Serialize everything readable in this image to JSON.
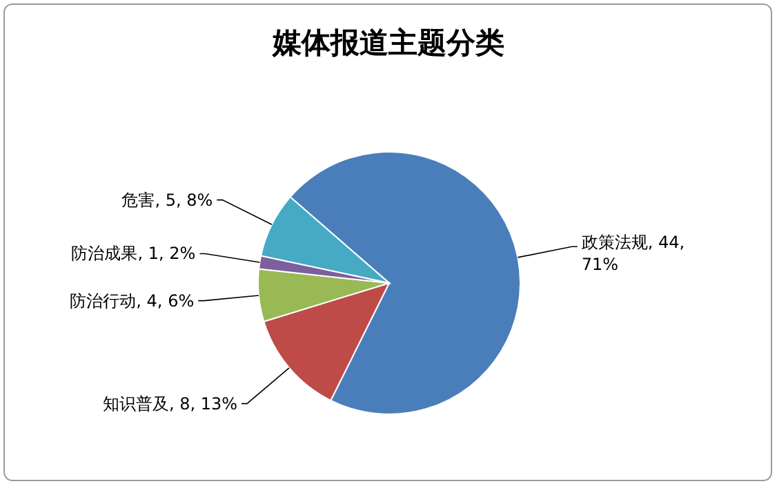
{
  "chart_data": {
    "type": "pie",
    "title": "媒体报道主题分类",
    "categories": [
      "政策法规",
      "知识普及",
      "防治行动",
      "防治成果",
      "危害"
    ],
    "values": [
      44,
      8,
      4,
      1,
      5
    ],
    "value_labels": [
      ", 44, 71%",
      ", 8, 13%",
      ", 4, 6%",
      ", 1, 2%",
      ", 5, 8%"
    ],
    "colors": [
      "#4a7ebb",
      "#be4b48",
      "#98b954",
      "#7d5fa0",
      "#46aac5"
    ]
  }
}
